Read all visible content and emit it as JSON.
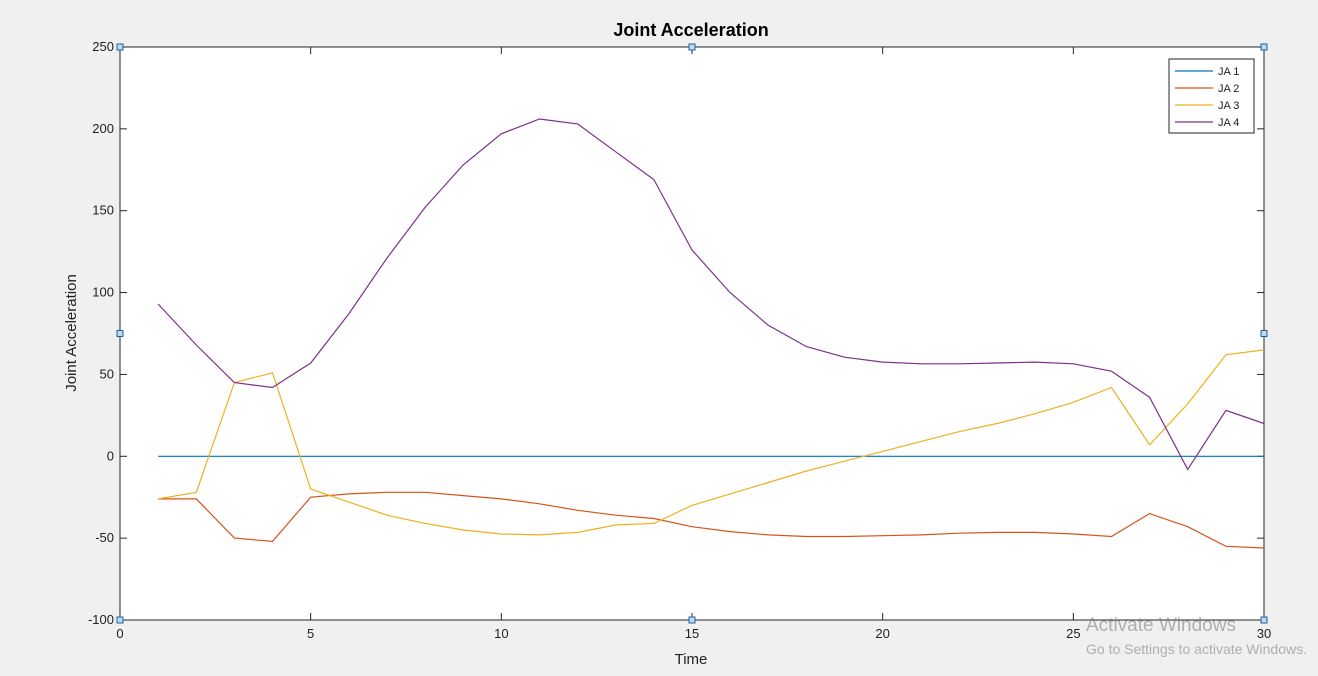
{
  "chart_data": {
    "type": "line",
    "title": "Joint Acceleration",
    "xlabel": "Time",
    "ylabel": "Joint Acceleration",
    "xlim": [
      0,
      30
    ],
    "ylim": [
      -100,
      250
    ],
    "xticks": [
      0,
      5,
      10,
      15,
      20,
      25,
      30
    ],
    "yticks": [
      -100,
      -50,
      0,
      50,
      100,
      150,
      200,
      250
    ],
    "grid": false,
    "legend_position": "top-right",
    "x": [
      1,
      2,
      3,
      4,
      5,
      6,
      7,
      8,
      9,
      10,
      11,
      12,
      13,
      14,
      15,
      16,
      17,
      18,
      19,
      20,
      21,
      22,
      23,
      24,
      25,
      26,
      27,
      28,
      29,
      30
    ],
    "series": [
      {
        "name": "JA 1",
        "color": "#0072bd",
        "values": [
          0,
          0,
          0,
          0,
          0,
          0,
          0,
          0,
          0,
          0,
          0,
          0,
          0,
          0,
          0,
          0,
          0,
          0,
          0,
          0,
          0,
          0,
          0,
          0,
          0,
          0,
          0,
          0,
          0,
          0
        ]
      },
      {
        "name": "JA 2",
        "color": "#d95319",
        "values": [
          -26,
          -26,
          -50,
          -52,
          -25,
          -23,
          -22,
          -22,
          -24,
          -26,
          -29,
          -33,
          -36,
          -38,
          -43,
          -46,
          -48,
          -49,
          -49,
          -48.5,
          -48,
          -47,
          -46.5,
          -46.5,
          -47.5,
          -49,
          -35,
          -43,
          -55,
          -56
        ]
      },
      {
        "name": "JA 3",
        "color": "#edb120",
        "values": [
          -26,
          -22,
          45,
          51,
          -20,
          -28,
          -36,
          -41,
          -45,
          -47.5,
          -48,
          -46.5,
          -42,
          -41,
          -30,
          -23,
          -16,
          -9,
          -3,
          3,
          9,
          15,
          20,
          26,
          33,
          42,
          7,
          32,
          62,
          65
        ]
      },
      {
        "name": "JA 4",
        "color": "#7e2f8e",
        "values": [
          93,
          68,
          45,
          42,
          57,
          87,
          121,
          152,
          178,
          197,
          206,
          203,
          186,
          169,
          126,
          100,
          80,
          67,
          60.5,
          57.5,
          56.5,
          56.5,
          57,
          57.5,
          56.5,
          52,
          36,
          -8,
          28,
          20
        ]
      }
    ]
  },
  "watermark": {
    "title": "Activate Windows",
    "subtitle": "Go to Settings to activate Windows."
  }
}
